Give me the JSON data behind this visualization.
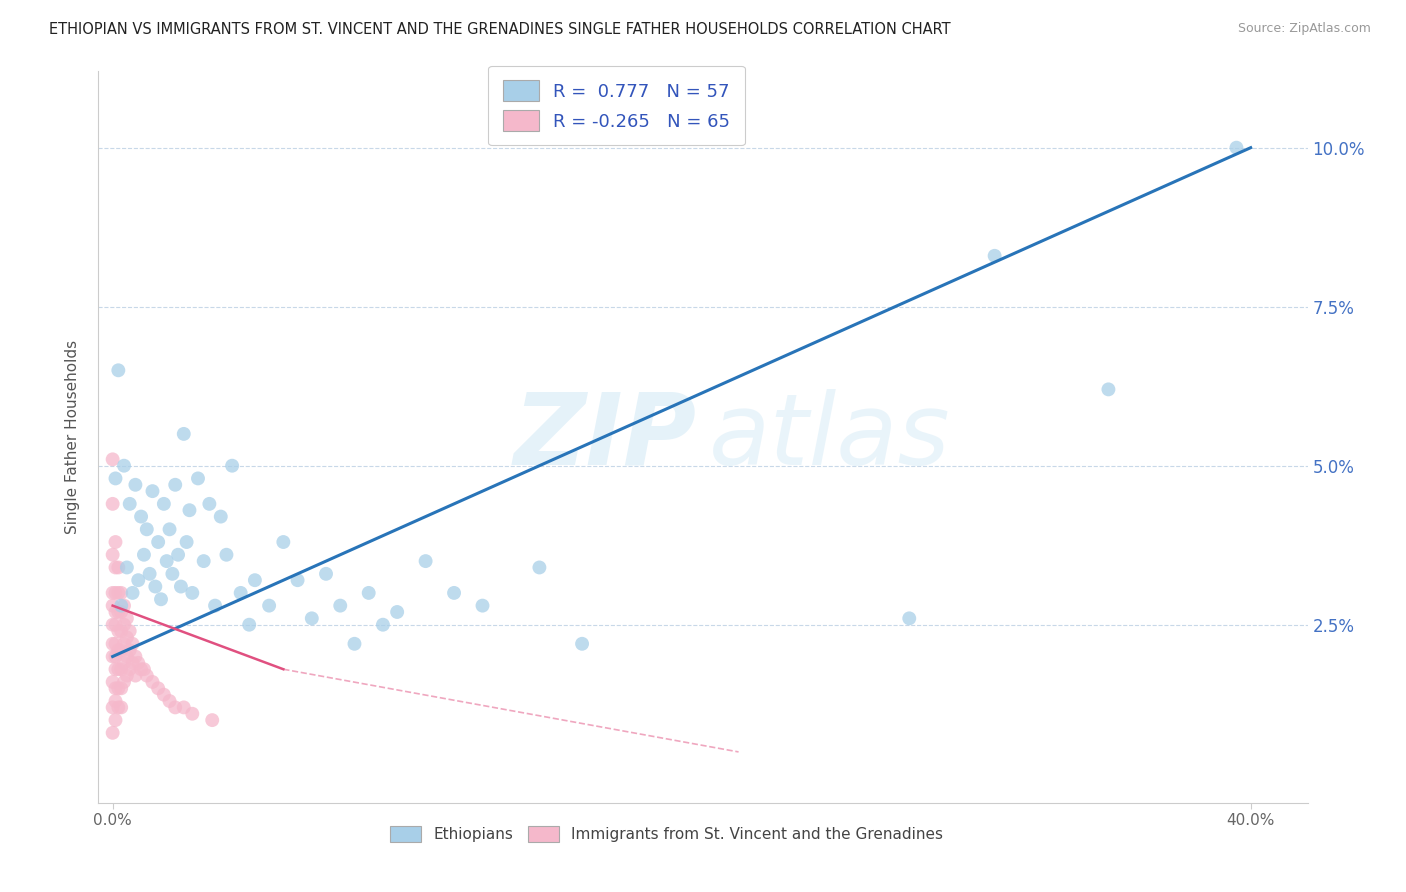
{
  "title": "ETHIOPIAN VS IMMIGRANTS FROM ST. VINCENT AND THE GRENADINES SINGLE FATHER HOUSEHOLDS CORRELATION CHART",
  "source_text": "Source: ZipAtlas.com",
  "ylabel": "Single Father Households",
  "label_blue": "Ethiopians",
  "label_pink": "Immigrants from St. Vincent and the Grenadines",
  "blue_R": 0.777,
  "blue_N": 57,
  "pink_R": -0.265,
  "pink_N": 65,
  "blue_color": "#a8cfe8",
  "pink_color": "#f5b8cb",
  "blue_line_color": "#2874b8",
  "pink_line_color": "#e05080",
  "blue_scatter": [
    [
      0.001,
      0.048
    ],
    [
      0.002,
      0.065
    ],
    [
      0.003,
      0.028
    ],
    [
      0.004,
      0.05
    ],
    [
      0.005,
      0.034
    ],
    [
      0.006,
      0.044
    ],
    [
      0.007,
      0.03
    ],
    [
      0.008,
      0.047
    ],
    [
      0.009,
      0.032
    ],
    [
      0.01,
      0.042
    ],
    [
      0.011,
      0.036
    ],
    [
      0.012,
      0.04
    ],
    [
      0.013,
      0.033
    ],
    [
      0.014,
      0.046
    ],
    [
      0.015,
      0.031
    ],
    [
      0.016,
      0.038
    ],
    [
      0.017,
      0.029
    ],
    [
      0.018,
      0.044
    ],
    [
      0.019,
      0.035
    ],
    [
      0.02,
      0.04
    ],
    [
      0.021,
      0.033
    ],
    [
      0.022,
      0.047
    ],
    [
      0.023,
      0.036
    ],
    [
      0.024,
      0.031
    ],
    [
      0.025,
      0.055
    ],
    [
      0.026,
      0.038
    ],
    [
      0.027,
      0.043
    ],
    [
      0.028,
      0.03
    ],
    [
      0.03,
      0.048
    ],
    [
      0.032,
      0.035
    ],
    [
      0.034,
      0.044
    ],
    [
      0.036,
      0.028
    ],
    [
      0.038,
      0.042
    ],
    [
      0.04,
      0.036
    ],
    [
      0.042,
      0.05
    ],
    [
      0.045,
      0.03
    ],
    [
      0.048,
      0.025
    ],
    [
      0.05,
      0.032
    ],
    [
      0.055,
      0.028
    ],
    [
      0.06,
      0.038
    ],
    [
      0.065,
      0.032
    ],
    [
      0.07,
      0.026
    ],
    [
      0.075,
      0.033
    ],
    [
      0.08,
      0.028
    ],
    [
      0.085,
      0.022
    ],
    [
      0.09,
      0.03
    ],
    [
      0.095,
      0.025
    ],
    [
      0.1,
      0.027
    ],
    [
      0.11,
      0.035
    ],
    [
      0.12,
      0.03
    ],
    [
      0.13,
      0.028
    ],
    [
      0.15,
      0.034
    ],
    [
      0.165,
      0.022
    ],
    [
      0.28,
      0.026
    ],
    [
      0.31,
      0.083
    ],
    [
      0.35,
      0.062
    ],
    [
      0.395,
      0.1
    ]
  ],
  "pink_scatter": [
    [
      0.0,
      0.051
    ],
    [
      0.0,
      0.044
    ],
    [
      0.0,
      0.036
    ],
    [
      0.0,
      0.03
    ],
    [
      0.0,
      0.028
    ],
    [
      0.0,
      0.025
    ],
    [
      0.0,
      0.022
    ],
    [
      0.0,
      0.02
    ],
    [
      0.0,
      0.016
    ],
    [
      0.0,
      0.012
    ],
    [
      0.0,
      0.008
    ],
    [
      0.001,
      0.038
    ],
    [
      0.001,
      0.034
    ],
    [
      0.001,
      0.03
    ],
    [
      0.001,
      0.027
    ],
    [
      0.001,
      0.025
    ],
    [
      0.001,
      0.022
    ],
    [
      0.001,
      0.02
    ],
    [
      0.001,
      0.018
    ],
    [
      0.001,
      0.015
    ],
    [
      0.001,
      0.013
    ],
    [
      0.001,
      0.01
    ],
    [
      0.002,
      0.034
    ],
    [
      0.002,
      0.03
    ],
    [
      0.002,
      0.027
    ],
    [
      0.002,
      0.024
    ],
    [
      0.002,
      0.021
    ],
    [
      0.002,
      0.018
    ],
    [
      0.002,
      0.015
    ],
    [
      0.002,
      0.012
    ],
    [
      0.003,
      0.03
    ],
    [
      0.003,
      0.027
    ],
    [
      0.003,
      0.024
    ],
    [
      0.003,
      0.021
    ],
    [
      0.003,
      0.018
    ],
    [
      0.003,
      0.015
    ],
    [
      0.003,
      0.012
    ],
    [
      0.004,
      0.028
    ],
    [
      0.004,
      0.025
    ],
    [
      0.004,
      0.022
    ],
    [
      0.004,
      0.019
    ],
    [
      0.004,
      0.016
    ],
    [
      0.005,
      0.026
    ],
    [
      0.005,
      0.023
    ],
    [
      0.005,
      0.02
    ],
    [
      0.005,
      0.017
    ],
    [
      0.006,
      0.024
    ],
    [
      0.006,
      0.021
    ],
    [
      0.006,
      0.018
    ],
    [
      0.007,
      0.022
    ],
    [
      0.007,
      0.019
    ],
    [
      0.008,
      0.02
    ],
    [
      0.008,
      0.017
    ],
    [
      0.009,
      0.019
    ],
    [
      0.01,
      0.018
    ],
    [
      0.011,
      0.018
    ],
    [
      0.012,
      0.017
    ],
    [
      0.014,
      0.016
    ],
    [
      0.016,
      0.015
    ],
    [
      0.018,
      0.014
    ],
    [
      0.02,
      0.013
    ],
    [
      0.022,
      0.012
    ],
    [
      0.025,
      0.012
    ],
    [
      0.028,
      0.011
    ],
    [
      0.035,
      0.01
    ]
  ],
  "blue_line": [
    [
      0.0,
      0.02
    ],
    [
      0.4,
      0.1
    ]
  ],
  "pink_line": [
    [
      0.0,
      0.028
    ],
    [
      0.06,
      0.018
    ]
  ],
  "pink_line_dash": [
    [
      0.06,
      0.018
    ],
    [
      0.22,
      0.005
    ]
  ],
  "xlim": [
    -0.005,
    0.42
  ],
  "ylim": [
    -0.003,
    0.112
  ],
  "xtick_vals": [
    0.0,
    0.4
  ],
  "xtick_labels": [
    "0.0%",
    "40.0%"
  ],
  "ytick_vals": [
    0.025,
    0.05,
    0.075,
    0.1
  ],
  "ytick_labels": [
    "2.5%",
    "5.0%",
    "7.5%",
    "10.0%"
  ],
  "watermark_zip": "ZIP",
  "watermark_atlas": "atlas",
  "background_color": "#ffffff",
  "grid_color": "#c8d8e8"
}
